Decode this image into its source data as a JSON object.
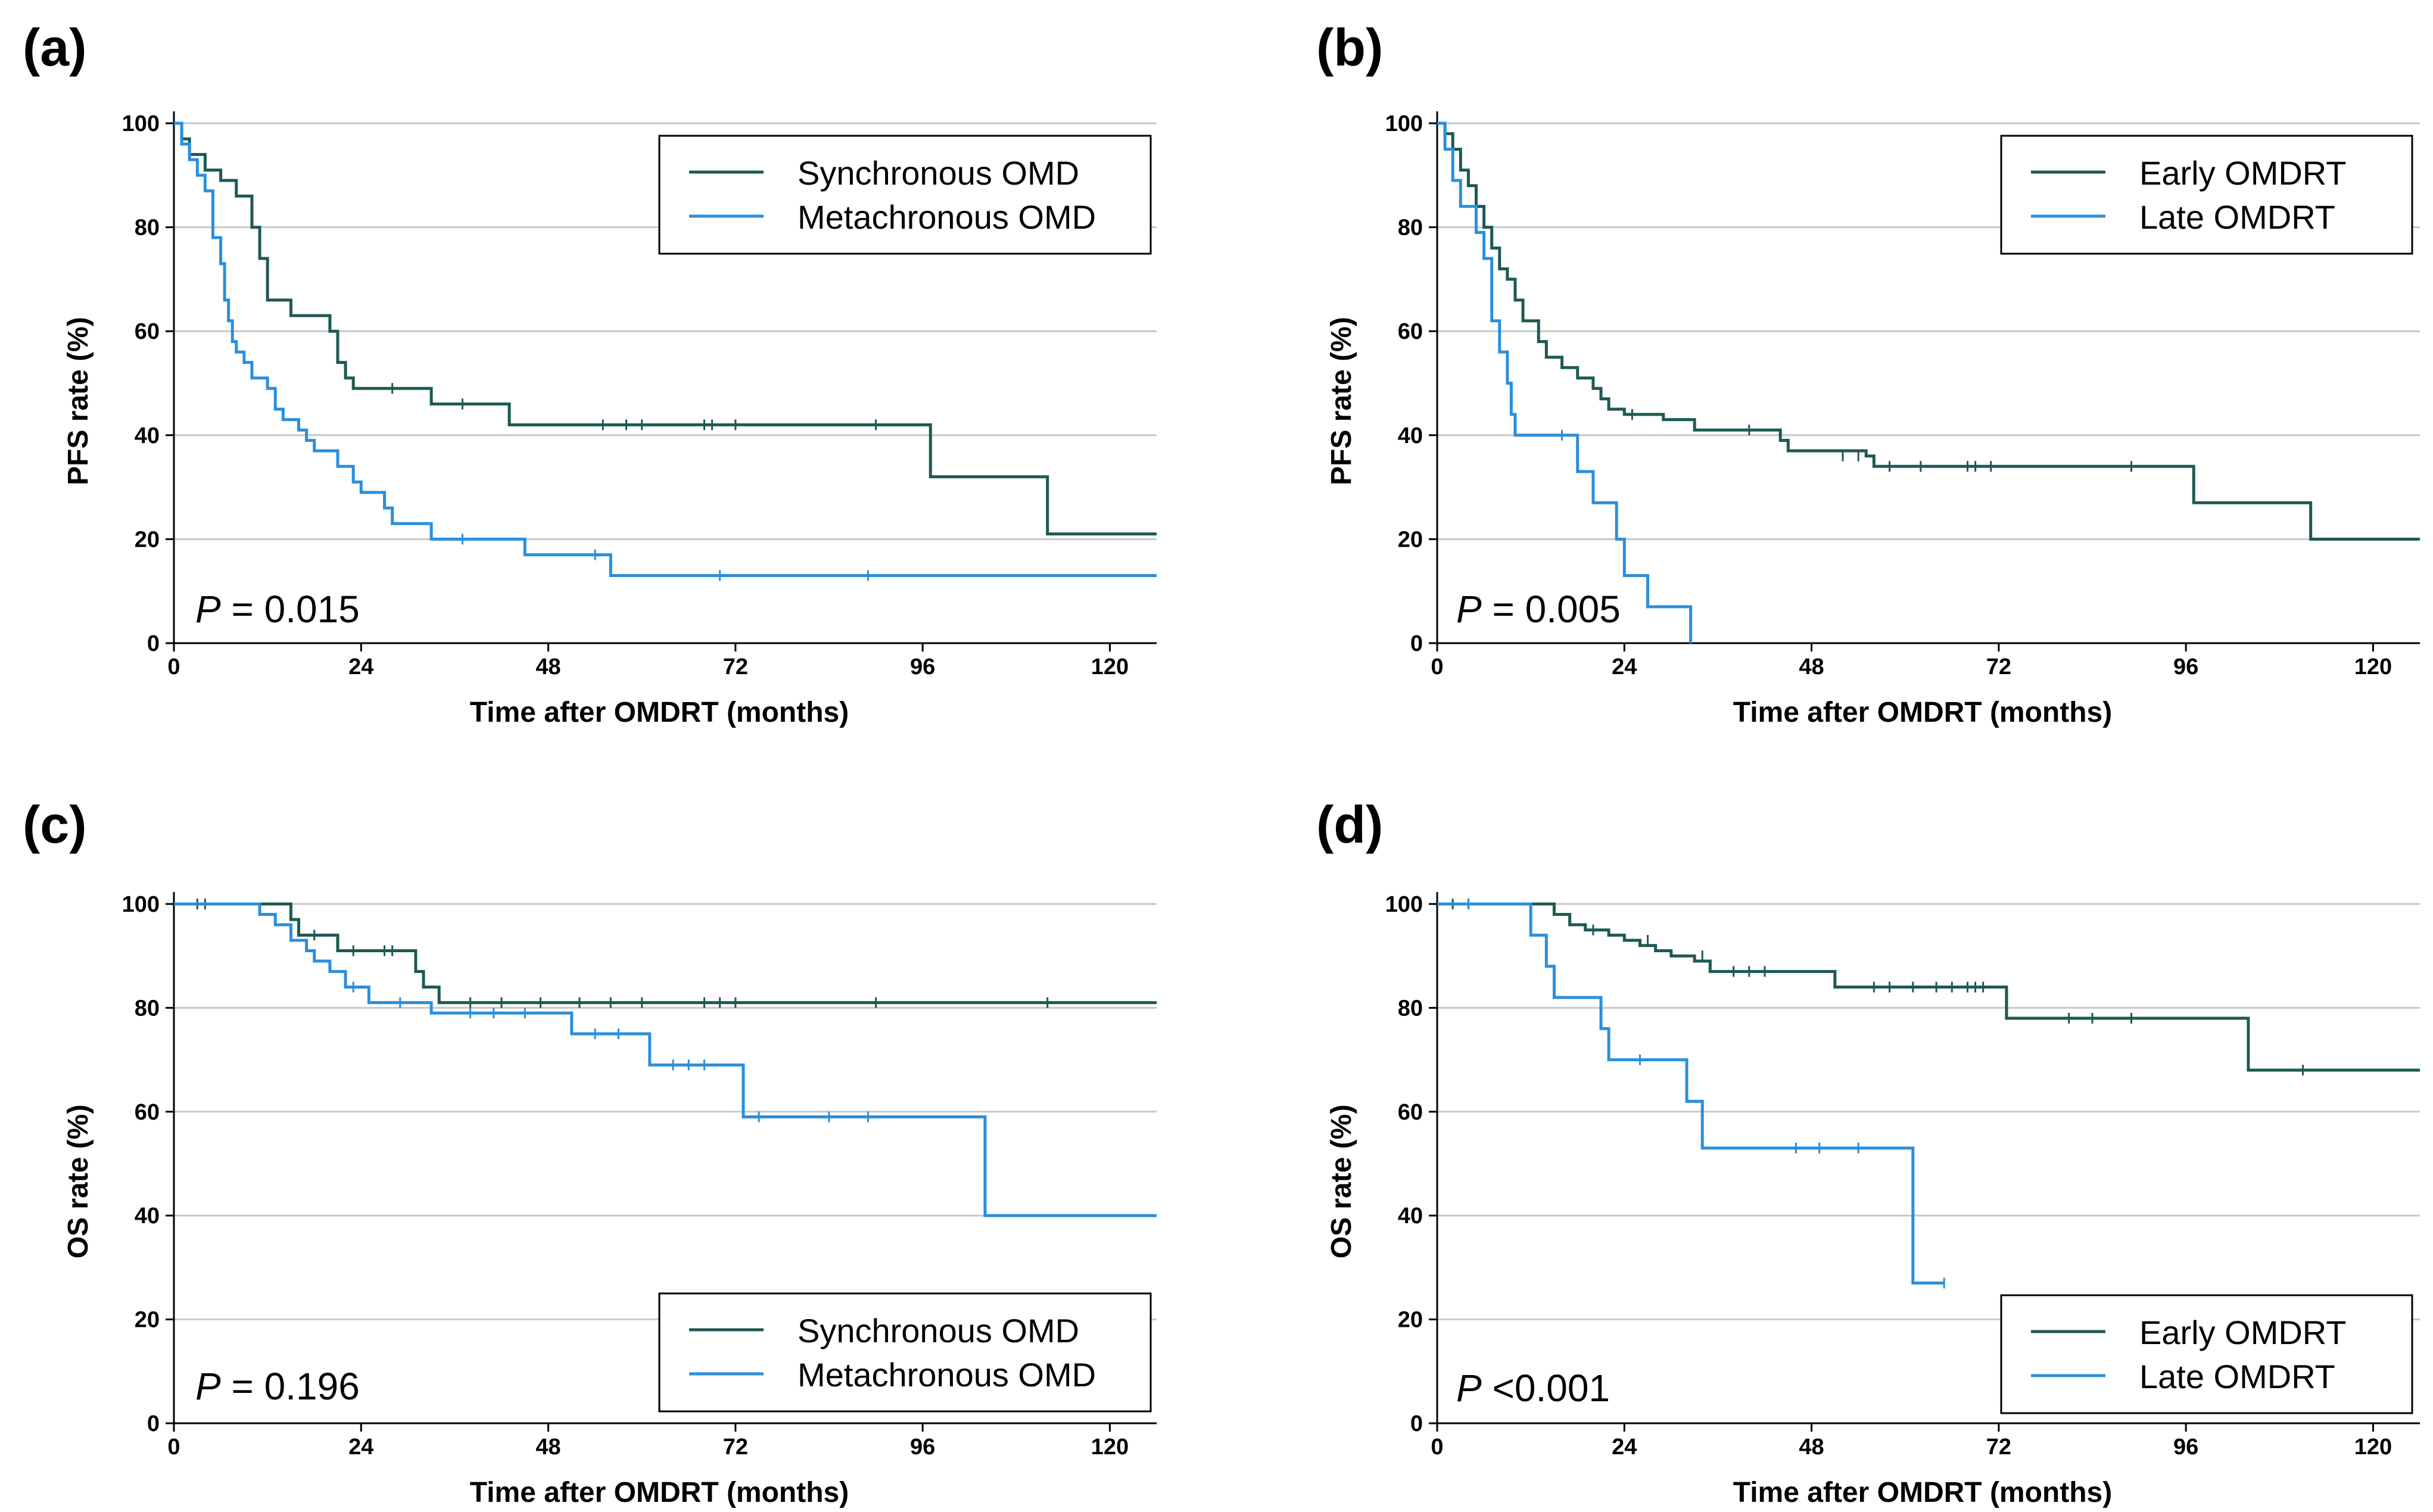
{
  "colors": {
    "series1": "#1d5a52",
    "series2": "#2a8fdd"
  },
  "chart_data": [
    {
      "type": "line",
      "panel": "(a)",
      "xlabel": "Time after OMDRT (months)",
      "ylabel": "PFS rate (%)",
      "xlim": [
        0,
        126
      ],
      "ylim": [
        0,
        100
      ],
      "xticks": [
        0,
        24,
        48,
        72,
        96,
        120
      ],
      "yticks": [
        0,
        20,
        40,
        60,
        80,
        100
      ],
      "legend_position": "top-right",
      "p_label": "P",
      "p_text": " = 0.015",
      "series": [
        {
          "name": "Synchronous OMD",
          "steps": [
            [
              0,
              100
            ],
            [
              1,
              97
            ],
            [
              2,
              94
            ],
            [
              3,
              94
            ],
            [
              4,
              91
            ],
            [
              5,
              91
            ],
            [
              6,
              89
            ],
            [
              8,
              86
            ],
            [
              9,
              86
            ],
            [
              10,
              80
            ],
            [
              11,
              74
            ],
            [
              12,
              66
            ],
            [
              14,
              66
            ],
            [
              15,
              63
            ],
            [
              19,
              63
            ],
            [
              20,
              60
            ],
            [
              21,
              54
            ],
            [
              22,
              51
            ],
            [
              23,
              49
            ],
            [
              26,
              49
            ],
            [
              33,
              46
            ],
            [
              43,
              42
            ],
            [
              96,
              42
            ],
            [
              97,
              32
            ],
            [
              111,
              32
            ],
            [
              112,
              21
            ],
            [
              126,
              21
            ]
          ],
          "censors": [
            [
              28,
              49
            ],
            [
              37,
              46
            ],
            [
              55,
              42
            ],
            [
              58,
              42
            ],
            [
              60,
              42
            ],
            [
              68,
              42
            ],
            [
              69,
              42
            ],
            [
              72,
              42
            ],
            [
              90,
              42
            ]
          ]
        },
        {
          "name": "Metachronous OMD",
          "steps": [
            [
              0,
              100
            ],
            [
              1,
              96
            ],
            [
              2,
              93
            ],
            [
              3,
              90
            ],
            [
              4,
              87
            ],
            [
              5,
              78
            ],
            [
              6,
              73
            ],
            [
              6.5,
              66
            ],
            [
              7,
              62
            ],
            [
              7.5,
              58
            ],
            [
              8,
              56
            ],
            [
              9,
              54
            ],
            [
              10,
              51
            ],
            [
              12,
              49
            ],
            [
              13,
              45
            ],
            [
              14,
              43
            ],
            [
              16,
              41
            ],
            [
              17,
              39
            ],
            [
              18,
              37
            ],
            [
              21,
              34
            ],
            [
              23,
              31
            ],
            [
              24,
              29
            ],
            [
              27,
              26
            ],
            [
              28,
              23
            ],
            [
              33,
              20
            ],
            [
              45,
              17
            ],
            [
              56,
              13
            ],
            [
              126,
              13
            ]
          ],
          "censors": [
            [
              37,
              20
            ],
            [
              54,
              17
            ],
            [
              70,
              13
            ],
            [
              89,
              13
            ]
          ]
        }
      ]
    },
    {
      "type": "line",
      "panel": "(b)",
      "xlabel": "Time after OMDRT (months)",
      "ylabel": "PFS rate (%)",
      "xlim": [
        0,
        126
      ],
      "ylim": [
        0,
        100
      ],
      "xticks": [
        0,
        24,
        48,
        72,
        96,
        120
      ],
      "yticks": [
        0,
        20,
        40,
        60,
        80,
        100
      ],
      "legend_position": "top-right",
      "p_label": "P",
      "p_text": " = 0.005",
      "series": [
        {
          "name": "Early OMDRT",
          "steps": [
            [
              0,
              100
            ],
            [
              1,
              98
            ],
            [
              2,
              95
            ],
            [
              3,
              91
            ],
            [
              4,
              88
            ],
            [
              5,
              84
            ],
            [
              6,
              80
            ],
            [
              7,
              76
            ],
            [
              8,
              72
            ],
            [
              9,
              70
            ],
            [
              10,
              66
            ],
            [
              11,
              62
            ],
            [
              13,
              58
            ],
            [
              14,
              55
            ],
            [
              16,
              53
            ],
            [
              18,
              51
            ],
            [
              20,
              49
            ],
            [
              21,
              47
            ],
            [
              22,
              45
            ],
            [
              24,
              44
            ],
            [
              29,
              43
            ],
            [
              33,
              41
            ],
            [
              44,
              39
            ],
            [
              45,
              37
            ],
            [
              55,
              36
            ],
            [
              56,
              34
            ],
            [
              96,
              34
            ],
            [
              97,
              27
            ],
            [
              111,
              27
            ],
            [
              112,
              20
            ],
            [
              126,
              20
            ]
          ],
          "censors": [
            [
              25,
              44
            ],
            [
              40,
              41
            ],
            [
              52,
              36
            ],
            [
              54,
              36
            ],
            [
              58,
              34
            ],
            [
              62,
              34
            ],
            [
              68,
              34
            ],
            [
              69,
              34
            ],
            [
              71,
              34
            ],
            [
              89,
              34
            ]
          ]
        },
        {
          "name": "Late OMDRT",
          "steps": [
            [
              0,
              100
            ],
            [
              1,
              95
            ],
            [
              2,
              89
            ],
            [
              3,
              84
            ],
            [
              5,
              79
            ],
            [
              6,
              74
            ],
            [
              7,
              62
            ],
            [
              8,
              56
            ],
            [
              9,
              50
            ],
            [
              9.5,
              44
            ],
            [
              10,
              40
            ],
            [
              17,
              40
            ],
            [
              18,
              33
            ],
            [
              20,
              27
            ],
            [
              23,
              20
            ],
            [
              24,
              13
            ],
            [
              27,
              7
            ],
            [
              32,
              7
            ],
            [
              32.5,
              0
            ]
          ],
          "censors": [
            [
              16,
              40
            ]
          ]
        }
      ]
    },
    {
      "type": "line",
      "panel": "(c)",
      "xlabel": "Time after OMDRT (months)",
      "ylabel": "OS rate (%)",
      "xlim": [
        0,
        126
      ],
      "ylim": [
        0,
        100
      ],
      "xticks": [
        0,
        24,
        48,
        72,
        96,
        120
      ],
      "yticks": [
        0,
        20,
        40,
        60,
        80,
        100
      ],
      "legend_position": "bottom-right",
      "p_label": "P",
      "p_text": " = 0.196",
      "series": [
        {
          "name": "Synchronous OMD",
          "steps": [
            [
              0,
              100
            ],
            [
              14,
              100
            ],
            [
              15,
              97
            ],
            [
              16,
              94
            ],
            [
              20,
              94
            ],
            [
              21,
              91
            ],
            [
              30,
              91
            ],
            [
              31,
              87
            ],
            [
              32,
              84
            ],
            [
              34,
              81
            ],
            [
              126,
              81
            ]
          ],
          "censors": [
            [
              3,
              100
            ],
            [
              4,
              100
            ],
            [
              18,
              94
            ],
            [
              23,
              91
            ],
            [
              27,
              91
            ],
            [
              28,
              91
            ],
            [
              38,
              81
            ],
            [
              42,
              81
            ],
            [
              47,
              81
            ],
            [
              52,
              81
            ],
            [
              56,
              81
            ],
            [
              60,
              81
            ],
            [
              68,
              81
            ],
            [
              70,
              81
            ],
            [
              72,
              81
            ],
            [
              90,
              81
            ],
            [
              112,
              81
            ]
          ]
        },
        {
          "name": "Metachronous OMD",
          "steps": [
            [
              0,
              100
            ],
            [
              10,
              100
            ],
            [
              11,
              98
            ],
            [
              13,
              96
            ],
            [
              15,
              93
            ],
            [
              17,
              91
            ],
            [
              18,
              89
            ],
            [
              20,
              87
            ],
            [
              22,
              84
            ],
            [
              25,
              81
            ],
            [
              33,
              79
            ],
            [
              50,
              79
            ],
            [
              51,
              75
            ],
            [
              60,
              75
            ],
            [
              61,
              69
            ],
            [
              72,
              69
            ],
            [
              73,
              59
            ],
            [
              103,
              59
            ],
            [
              104,
              40
            ],
            [
              126,
              40
            ]
          ],
          "censors": [
            [
              23,
              84
            ],
            [
              29,
              81
            ],
            [
              38,
              79
            ],
            [
              41,
              79
            ],
            [
              45,
              79
            ],
            [
              54,
              75
            ],
            [
              57,
              75
            ],
            [
              64,
              69
            ],
            [
              66,
              69
            ],
            [
              68,
              69
            ],
            [
              75,
              59
            ],
            [
              84,
              59
            ],
            [
              89,
              59
            ]
          ]
        }
      ]
    },
    {
      "type": "line",
      "panel": "(d)",
      "xlabel": "Time after OMDRT (months)",
      "ylabel": "OS rate (%)",
      "xlim": [
        0,
        126
      ],
      "ylim": [
        0,
        100
      ],
      "xticks": [
        0,
        24,
        48,
        72,
        96,
        120
      ],
      "yticks": [
        0,
        20,
        40,
        60,
        80,
        100
      ],
      "legend_position": "bottom-right",
      "p_label": "P",
      "p_text": " <0.001",
      "series": [
        {
          "name": "Early OMDRT",
          "steps": [
            [
              0,
              100
            ],
            [
              14,
              100
            ],
            [
              15,
              98
            ],
            [
              17,
              96
            ],
            [
              19,
              95
            ],
            [
              22,
              94
            ],
            [
              24,
              93
            ],
            [
              25,
              93
            ],
            [
              26,
              92
            ],
            [
              28,
              91
            ],
            [
              30,
              90
            ],
            [
              32,
              90
            ],
            [
              33,
              89
            ],
            [
              35,
              87
            ],
            [
              50,
              87
            ],
            [
              51,
              84
            ],
            [
              72,
              84
            ],
            [
              73,
              78
            ],
            [
              103,
              78
            ],
            [
              104,
              68
            ],
            [
              126,
              68
            ]
          ],
          "censors": [
            [
              2,
              100
            ],
            [
              4,
              100
            ],
            [
              20,
              95
            ],
            [
              27,
              93
            ],
            [
              34,
              90
            ],
            [
              38,
              87
            ],
            [
              40,
              87
            ],
            [
              42,
              87
            ],
            [
              56,
              84
            ],
            [
              58,
              84
            ],
            [
              61,
              84
            ],
            [
              64,
              84
            ],
            [
              66,
              84
            ],
            [
              68,
              84
            ],
            [
              69,
              84
            ],
            [
              70,
              84
            ],
            [
              81,
              78
            ],
            [
              84,
              78
            ],
            [
              89,
              78
            ],
            [
              111,
              68
            ]
          ]
        },
        {
          "name": "Late OMDRT",
          "steps": [
            [
              0,
              100
            ],
            [
              11,
              100
            ],
            [
              12,
              94
            ],
            [
              14,
              88
            ],
            [
              15,
              82
            ],
            [
              20,
              82
            ],
            [
              21,
              76
            ],
            [
              22,
              70
            ],
            [
              31,
              70
            ],
            [
              32,
              62
            ],
            [
              33,
              62
            ],
            [
              34,
              53
            ],
            [
              60,
              53
            ],
            [
              61,
              27
            ],
            [
              65,
              27
            ]
          ],
          "censors": [
            [
              4,
              100
            ],
            [
              26,
              70
            ],
            [
              46,
              53
            ],
            [
              49,
              53
            ],
            [
              54,
              53
            ],
            [
              65,
              27
            ]
          ]
        }
      ]
    }
  ]
}
